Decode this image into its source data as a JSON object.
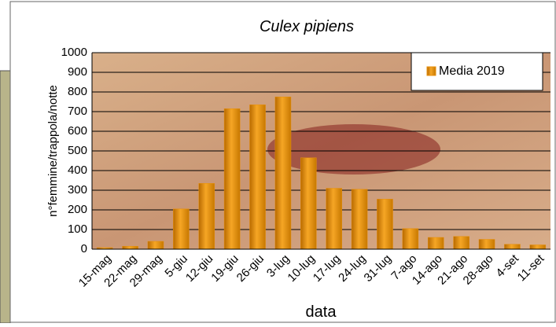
{
  "chart_data": {
    "type": "bar",
    "title": "Culex pipiens",
    "y_label": "n°femmine/trappola/notte",
    "x_label": "data",
    "categories": [
      "15-mag",
      "22-mag",
      "29-mag",
      "5-giu",
      "12-giu",
      "19-giu",
      "26-giu",
      "3-lug",
      "10-lug",
      "17-lug",
      "24-lug",
      "31-lug",
      "7-ago",
      "14-ago",
      "21-ago",
      "28-ago",
      "4-set",
      "11-set"
    ],
    "series": [
      {
        "name": "Media 2019",
        "color": "#e8900c",
        "values": [
          8,
          15,
          40,
          205,
          335,
          715,
          735,
          775,
          465,
          310,
          305,
          255,
          105,
          60,
          65,
          50,
          25,
          22
        ]
      }
    ],
    "ylim": [
      0,
      1000
    ],
    "yticks": [
      0,
      100,
      200,
      300,
      400,
      500,
      600,
      700,
      800,
      900,
      1000
    ],
    "grid": true,
    "legend": "top-right"
  }
}
